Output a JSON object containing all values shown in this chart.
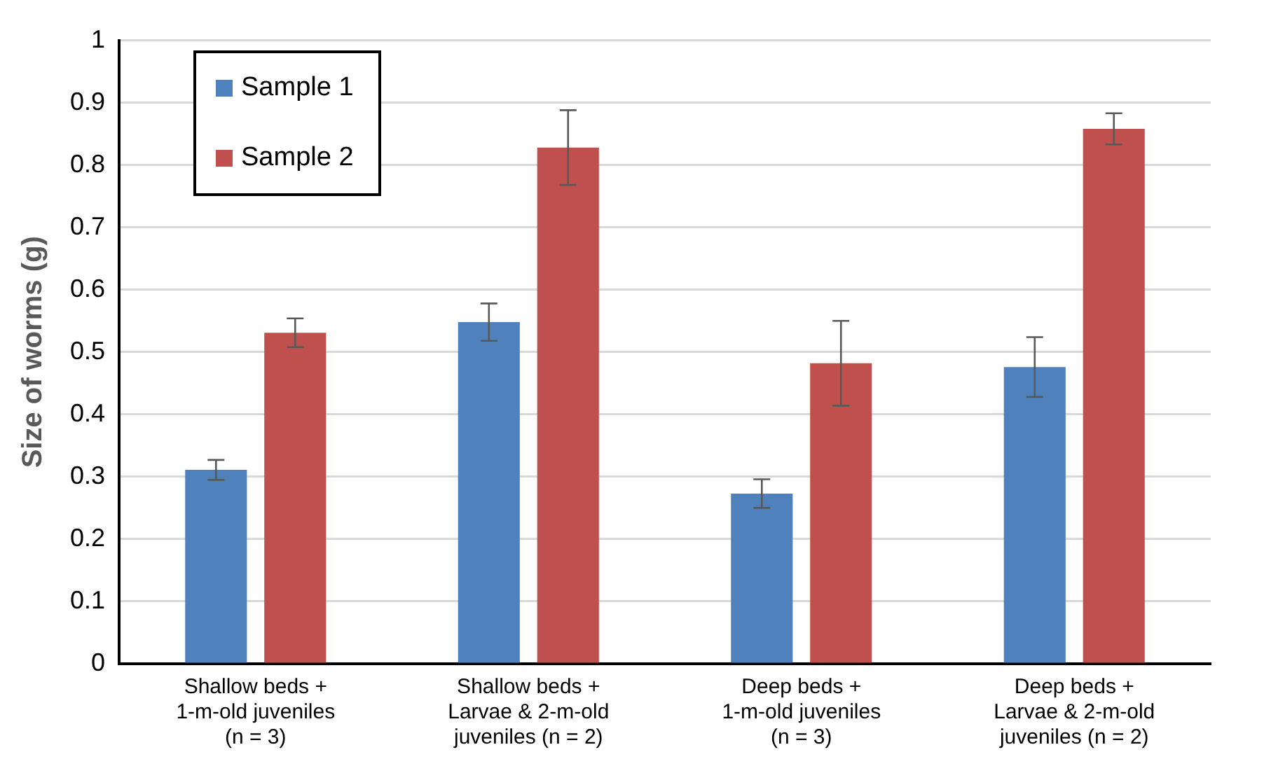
{
  "chart_data": {
    "type": "bar",
    "ylabel": "Size of worms (g)",
    "categories": [
      "Shallow beds +\n1-m-old juveniles\n(n = 3)",
      "Shallow beds +\nLarvae & 2-m-old\njuveniles (n = 2)",
      "Deep beds +\n1-m-old juveniles\n(n = 3)",
      "Deep beds +\nLarvae & 2-m-old\njuveniles (n = 2)"
    ],
    "series": [
      {
        "name": "Sample 1",
        "color": "#4f81bd",
        "values": [
          0.311,
          0.548,
          0.273,
          0.476
        ],
        "errors": [
          0.016,
          0.03,
          0.023,
          0.048
        ]
      },
      {
        "name": "Sample 2",
        "color": "#c0504d",
        "values": [
          0.531,
          0.828,
          0.482,
          0.858
        ],
        "errors": [
          0.023,
          0.06,
          0.068,
          0.025
        ]
      }
    ],
    "ylim": [
      0,
      1
    ],
    "yticks": [
      0,
      0.1,
      0.2,
      0.3,
      0.4,
      0.5,
      0.6,
      0.7,
      0.8,
      0.9,
      1
    ],
    "grid": "y",
    "legend": "top left"
  }
}
